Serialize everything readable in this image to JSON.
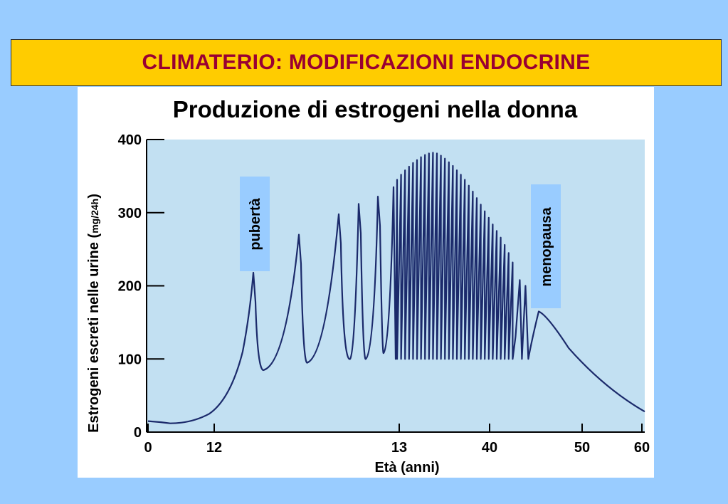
{
  "slide": {
    "banner_title": "CLIMATERIO: MODIFICAZIONI ENDOCRINE",
    "colors": {
      "background": "#99ccff",
      "banner": "#ffcc00",
      "banner_text": "#990033",
      "plot_bg": "#c2e0f2",
      "line": "#1b2a6b",
      "label_box": "#99ccff"
    }
  },
  "chart_data": {
    "type": "line",
    "title": "Produzione di estrogeni nella donna",
    "xlabel": "Età (anni)",
    "ylabel_main": "Estrogeni escreti nelle urine (",
    "ylabel_unit": "mg/24h",
    "ylabel_close": ")",
    "ylim": [
      0,
      400
    ],
    "yticks": [
      "0",
      "100",
      "200",
      "300",
      "400"
    ],
    "xticks": [
      "0",
      "12",
      "13",
      "40",
      "50",
      "60"
    ],
    "annotations": [
      {
        "id": "pubertà",
        "text": "pubertà"
      },
      {
        "id": "menopausa",
        "text": "menopausa"
      }
    ],
    "grid": false,
    "note": "x-axis uses non-uniform scale; segments between printed ticks",
    "series": [
      {
        "values_by_phase": {
          "childhood": [
            [
              0,
              15
            ],
            [
              3,
              12
            ],
            [
              6,
              13
            ],
            [
              9,
              20
            ],
            [
              12,
              45
            ],
            [
              13.5,
              95
            ],
            [
              14.5,
              160
            ],
            [
              15,
              218
            ]
          ],
          "puberty_peaks": [
            218,
            270,
            298,
            312,
            322,
            335
          ],
          "puberty_troughs": [
            85,
            95,
            100,
            100,
            108
          ],
          "reproductive_cycles": {
            "count": 30,
            "low": 100,
            "peaks": [
              345,
              352,
              358,
              363,
              368,
              372,
              376,
              379,
              381,
              382,
              381,
              378,
              374,
              369,
              364,
              358,
              352,
              345,
              337,
              329,
              320,
              311,
              302,
              293,
              284,
              275,
              266,
              256,
              245,
              232
            ]
          },
          "perimenopause_peaks": [
            218,
            200
          ],
          "postmenopause": [
            [
              45,
              165
            ],
            [
              50,
              110
            ],
            [
              55,
              60
            ],
            [
              60,
              28
            ]
          ]
        }
      }
    ]
  }
}
